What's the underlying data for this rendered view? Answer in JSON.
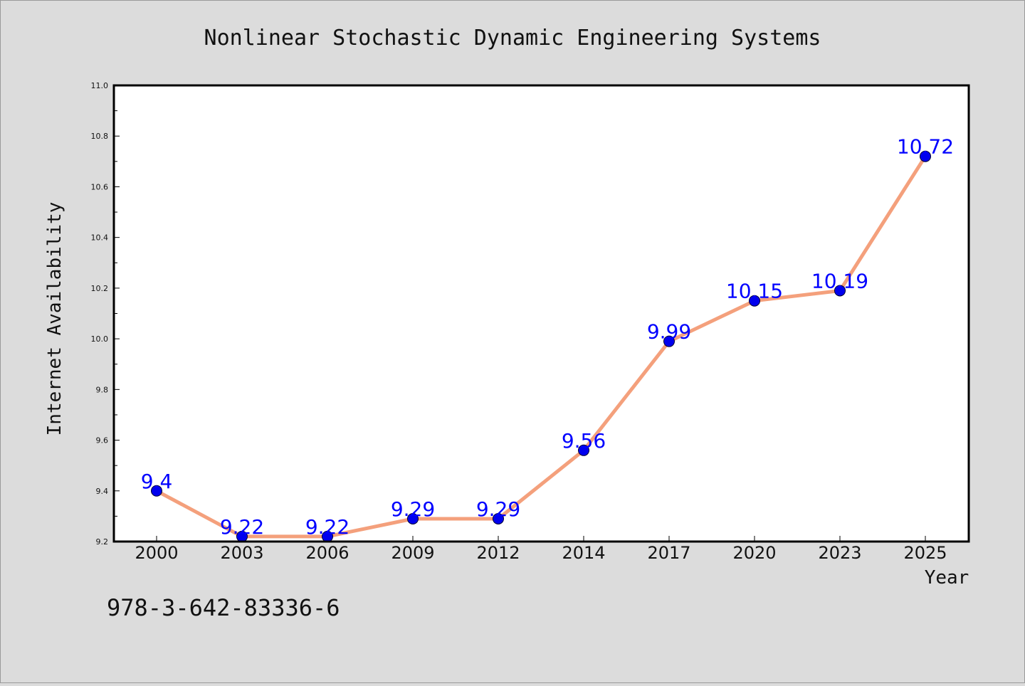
{
  "chart_data": {
    "type": "line",
    "title": "Nonlinear Stochastic Dynamic Engineering Systems",
    "xlabel": "Year",
    "ylabel": "Internet Availability",
    "categories": [
      "2000",
      "2003",
      "2006",
      "2009",
      "2012",
      "2014",
      "2017",
      "2020",
      "2023",
      "2025"
    ],
    "series": [
      {
        "values": [
          9.4,
          9.22,
          9.22,
          9.29,
          9.29,
          9.56,
          9.99,
          10.15,
          10.19,
          10.72
        ]
      }
    ],
    "data_labels": [
      "9.4",
      "9.22",
      "9.22",
      "9.29",
      "9.29",
      "9.56",
      "9.99",
      "10.15",
      "10.19",
      "10.72"
    ],
    "ylim": [
      9.2,
      11.0
    ],
    "yticks": [
      "9.2",
      "9.4",
      "9.6",
      "9.8",
      "10.0",
      "10.2",
      "10.4",
      "10.6",
      "10.8",
      "11.0"
    ],
    "grid": false,
    "legend": "none",
    "line_color": "#f4a07c",
    "marker_color": "#0000ee",
    "label_color": "#0000ff"
  },
  "footer": {
    "isbn": "978-3-642-83336-6"
  }
}
